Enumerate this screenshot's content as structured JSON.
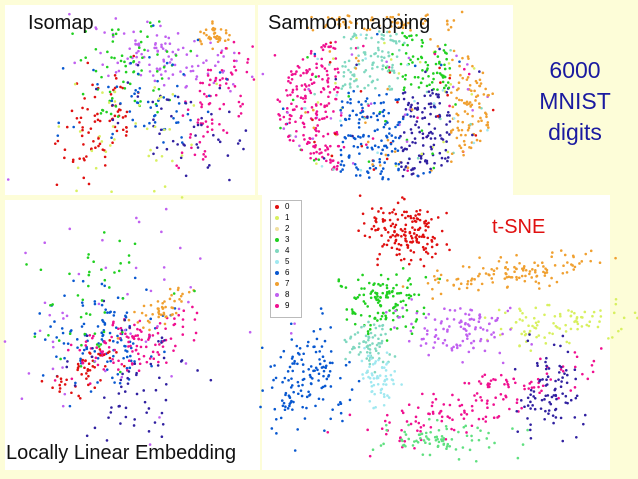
{
  "labels": {
    "isomap": "Isomap",
    "sammon": "Sammon mapping",
    "lle": "Locally Linear Embedding",
    "tsne": "t-SNE",
    "caption": [
      "6000",
      "MNIST",
      "digits"
    ]
  },
  "legend": {
    "digits": [
      "0",
      "1",
      "2",
      "3",
      "4",
      "5",
      "6",
      "7",
      "8",
      "9"
    ],
    "colors": [
      "#e01010",
      "#d8f060",
      "#f0e0a0",
      "#20d020",
      "#80d8c0",
      "#a0e8f0",
      "#0858d0",
      "#f0a030",
      "#c060f0",
      "#f01090"
    ]
  },
  "colors": {
    "background": "#fdfdd8",
    "caption": "#1a1aa0",
    "tsne_label": "#e01010"
  }
}
